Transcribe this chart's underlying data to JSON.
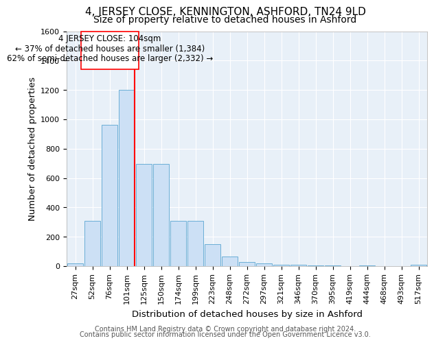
{
  "title": "4, JERSEY CLOSE, KENNINGTON, ASHFORD, TN24 9LD",
  "subtitle": "Size of property relative to detached houses in Ashford",
  "xlabel": "Distribution of detached houses by size in Ashford",
  "ylabel": "Number of detached properties",
  "footer_line1": "Contains HM Land Registry data © Crown copyright and database right 2024.",
  "footer_line2": "Contains public sector information licensed under the Open Government Licence v3.0.",
  "bar_labels": [
    "27sqm",
    "52sqm",
    "76sqm",
    "101sqm",
    "125sqm",
    "150sqm",
    "174sqm",
    "199sqm",
    "223sqm",
    "248sqm",
    "272sqm",
    "297sqm",
    "321sqm",
    "346sqm",
    "370sqm",
    "395sqm",
    "419sqm",
    "444sqm",
    "468sqm",
    "493sqm",
    "517sqm"
  ],
  "bar_values": [
    20,
    310,
    960,
    1200,
    695,
    695,
    310,
    310,
    150,
    65,
    30,
    20,
    10,
    8,
    5,
    5,
    0,
    3,
    0,
    0,
    8
  ],
  "bar_color": "#cce0f5",
  "bar_edge_color": "#6aaed6",
  "annotation_line1": "4 JERSEY CLOSE: 104sqm",
  "annotation_line2": "← 37% of detached houses are smaller (1,384)",
  "annotation_line3": "62% of semi-detached houses are larger (2,332) →",
  "ylim": [
    0,
    1600
  ],
  "yticks": [
    0,
    200,
    400,
    600,
    800,
    1000,
    1200,
    1400,
    1600
  ],
  "bg_color": "#e8f0f8",
  "title_fontsize": 11,
  "subtitle_fontsize": 10,
  "axis_label_fontsize": 9.5,
  "tick_fontsize": 8,
  "footer_fontsize": 7
}
